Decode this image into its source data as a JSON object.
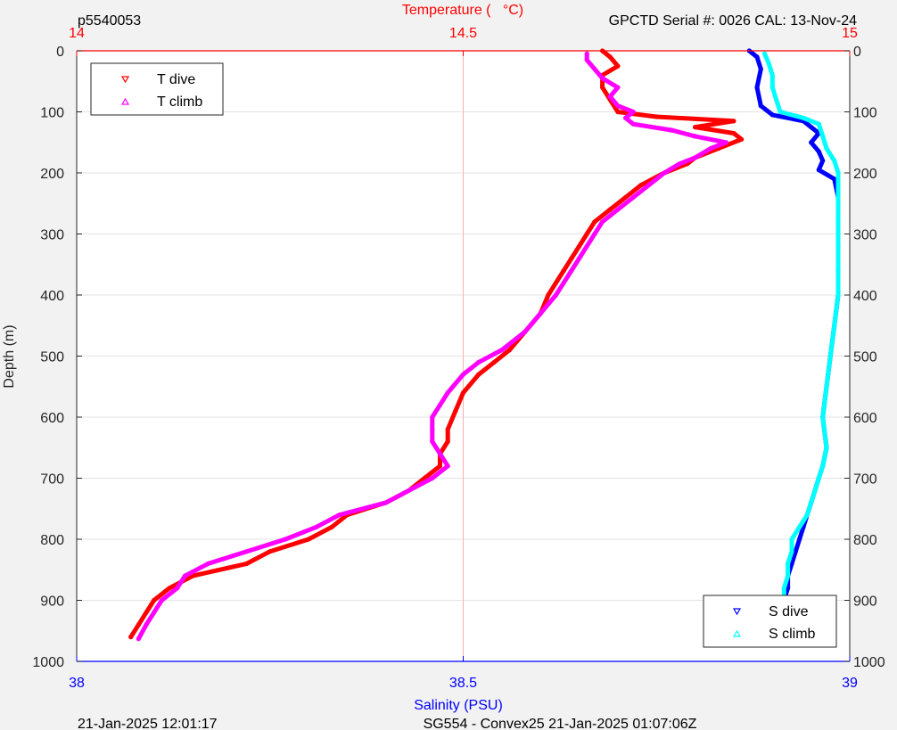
{
  "header": {
    "left": "p5540053",
    "right": "GPCTD Serial #: 0026 CAL: 13-Nov-24"
  },
  "footer": {
    "left": "21-Jan-2025 12:01:17",
    "center": "SG554 - Convex25 21-Jan-2025 01:07:06Z"
  },
  "chart_data": {
    "type": "scatter",
    "ylabel": "Depth (m)",
    "xlabel_bottom": "Salinity (PSU)",
    "xlabel_top": "Temperature (   °C)",
    "y_ticks": [
      "0",
      "100",
      "200",
      "300",
      "400",
      "500",
      "600",
      "700",
      "800",
      "900",
      "1000"
    ],
    "ylim": [
      0,
      1000
    ],
    "y_reversed": true,
    "salinity_ticks": [
      "38",
      "38.5",
      "39"
    ],
    "salinity_range": [
      38,
      39
    ],
    "temperature_ticks": [
      "14",
      "14.5",
      "15"
    ],
    "temperature_range": [
      14,
      15
    ],
    "grid": true,
    "colors": {
      "t_dive": "#ff0000",
      "t_climb": "#ff00ff",
      "s_dive": "#0000ff",
      "s_climb": "#00ffff",
      "bottom_axis": "#0000ff",
      "top_axis": "#ff0000"
    },
    "legend_temperature": {
      "placement": "top-left",
      "entries": [
        "T dive",
        "T climb"
      ]
    },
    "legend_salinity": {
      "placement": "bottom-right",
      "entries": [
        "S dive",
        "S climb"
      ]
    },
    "series": [
      {
        "name": "T dive",
        "axis": "temperature",
        "depth": [
          0,
          10,
          25,
          40,
          60,
          80,
          100,
          108,
          115,
          125,
          135,
          145,
          160,
          175,
          185,
          200,
          220,
          240,
          260,
          280,
          300,
          320,
          340,
          360,
          380,
          400,
          430,
          460,
          490,
          510,
          530,
          560,
          590,
          620,
          640,
          660,
          680,
          700,
          720,
          740,
          760,
          780,
          800,
          820,
          840,
          860,
          880,
          900,
          920,
          940,
          960
        ],
        "values": [
          14.68,
          14.69,
          14.7,
          14.68,
          14.68,
          14.69,
          14.7,
          14.75,
          14.85,
          14.8,
          14.85,
          14.86,
          14.83,
          14.8,
          14.79,
          14.76,
          14.73,
          14.71,
          14.69,
          14.67,
          14.66,
          14.65,
          14.64,
          14.63,
          14.62,
          14.61,
          14.6,
          14.58,
          14.56,
          14.54,
          14.52,
          14.5,
          14.49,
          14.48,
          14.48,
          14.47,
          14.47,
          14.45,
          14.43,
          14.4,
          14.35,
          14.33,
          14.3,
          14.25,
          14.22,
          14.15,
          14.12,
          14.1,
          14.09,
          14.08,
          14.07
        ]
      },
      {
        "name": "T climb",
        "axis": "temperature",
        "depth": [
          963,
          940,
          920,
          900,
          880,
          860,
          840,
          820,
          800,
          780,
          760,
          740,
          720,
          700,
          680,
          660,
          640,
          620,
          600,
          580,
          560,
          530,
          510,
          490,
          460,
          430,
          400,
          380,
          360,
          340,
          320,
          300,
          280,
          260,
          240,
          220,
          200,
          185,
          175,
          160,
          150,
          140,
          130,
          120,
          110,
          100,
          90,
          75,
          60,
          45,
          30,
          15,
          5
        ],
        "values": [
          14.08,
          14.09,
          14.1,
          14.11,
          14.13,
          14.14,
          14.17,
          14.22,
          14.27,
          14.31,
          14.34,
          14.4,
          14.43,
          14.46,
          14.48,
          14.47,
          14.46,
          14.46,
          14.46,
          14.47,
          14.48,
          14.5,
          14.52,
          14.55,
          14.58,
          14.6,
          14.62,
          14.63,
          14.64,
          14.65,
          14.66,
          14.67,
          14.68,
          14.7,
          14.72,
          14.74,
          14.76,
          14.78,
          14.8,
          14.82,
          14.84,
          14.8,
          14.77,
          14.72,
          14.71,
          14.72,
          14.7,
          14.69,
          14.7,
          14.68,
          14.67,
          14.66,
          14.66
        ]
      },
      {
        "name": "S dive",
        "axis": "salinity",
        "depth": [
          0,
          10,
          30,
          60,
          90,
          105,
          115,
          125,
          135,
          150,
          165,
          180,
          195,
          210,
          240,
          280,
          320,
          360,
          400,
          450,
          500,
          550,
          600,
          650,
          680,
          700,
          720,
          740,
          760,
          780,
          800,
          820,
          840,
          860,
          880,
          900,
          920,
          940,
          960
        ],
        "values": [
          38.87,
          38.88,
          38.885,
          38.88,
          38.885,
          38.9,
          38.94,
          38.95,
          38.96,
          38.95,
          38.96,
          38.965,
          38.96,
          38.98,
          38.985,
          38.985,
          38.985,
          38.985,
          38.985,
          38.98,
          38.975,
          38.97,
          38.965,
          38.97,
          38.965,
          38.96,
          38.955,
          38.95,
          38.945,
          38.94,
          38.935,
          38.93,
          38.925,
          38.92,
          38.92,
          38.915,
          38.91,
          38.91,
          38.91
        ]
      },
      {
        "name": "S climb",
        "axis": "salinity",
        "depth": [
          963,
          940,
          920,
          900,
          880,
          860,
          840,
          820,
          800,
          780,
          760,
          740,
          720,
          700,
          680,
          650,
          600,
          550,
          500,
          450,
          400,
          350,
          300,
          250,
          200,
          180,
          160,
          140,
          120,
          110,
          100,
          80,
          60,
          40,
          20,
          5
        ],
        "values": [
          38.91,
          38.91,
          38.915,
          38.915,
          38.915,
          38.92,
          38.92,
          38.925,
          38.925,
          38.935,
          38.945,
          38.95,
          38.955,
          38.96,
          38.965,
          38.97,
          38.965,
          38.97,
          38.975,
          38.98,
          38.985,
          38.985,
          38.985,
          38.985,
          38.985,
          38.98,
          38.97,
          38.965,
          38.96,
          38.94,
          38.91,
          38.905,
          38.9,
          38.9,
          38.895,
          38.89
        ]
      }
    ]
  }
}
